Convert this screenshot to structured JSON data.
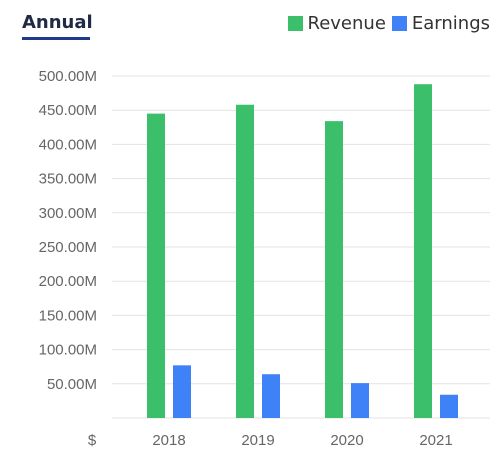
{
  "header": {
    "tab_label": "Annual"
  },
  "currency_symbol": "$",
  "colors": {
    "revenue": "#3cbf6b",
    "earnings": "#3f82f7",
    "grid": "#e3e3e3",
    "tab_underline": "#1f3a8a"
  },
  "chart_data": {
    "type": "bar",
    "categories": [
      "2018",
      "2019",
      "2020",
      "2021"
    ],
    "series": [
      {
        "name": "Revenue",
        "values": [
          445,
          458,
          434,
          488
        ]
      },
      {
        "name": "Earnings",
        "values": [
          77,
          64,
          51,
          34
        ]
      }
    ],
    "ylim": [
      0,
      500
    ],
    "y_ticks": [
      50,
      100,
      150,
      200,
      250,
      300,
      350,
      400,
      450,
      500
    ],
    "y_tick_labels": [
      "50.00M",
      "100.00M",
      "150.00M",
      "200.00M",
      "250.00M",
      "300.00M",
      "350.00M",
      "400.00M",
      "450.00M",
      "500.00M"
    ],
    "value_unit": "M",
    "legend_position": "top-right",
    "grid": true
  }
}
